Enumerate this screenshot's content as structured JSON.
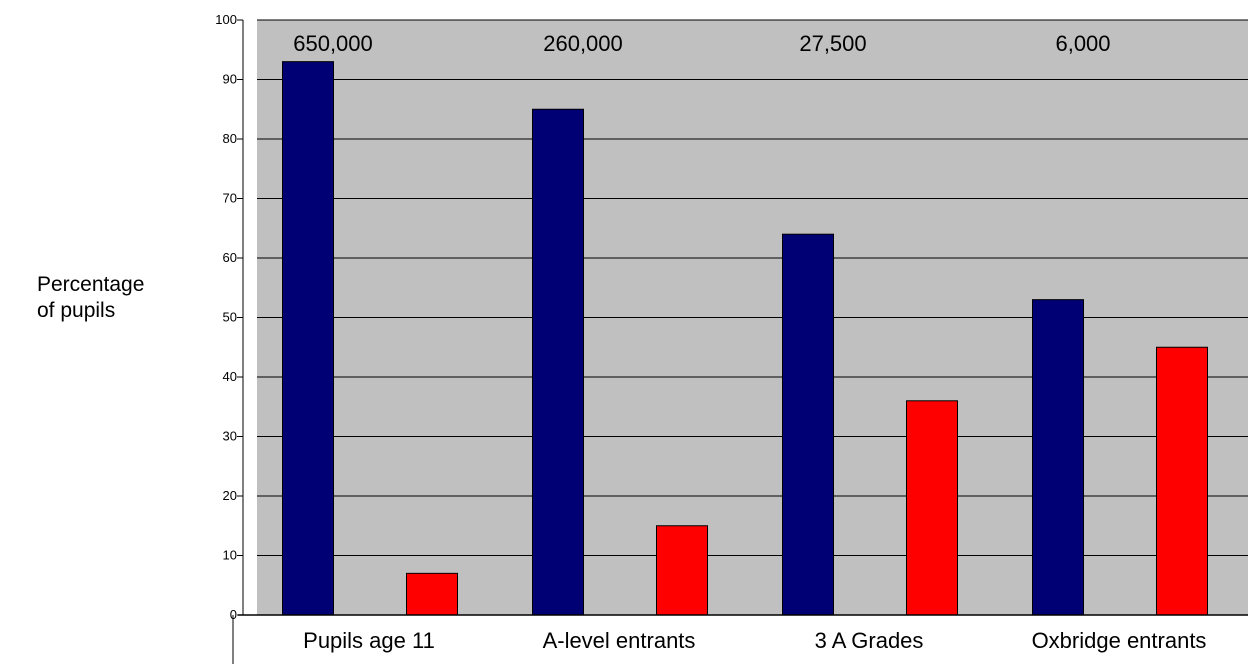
{
  "chart_data": {
    "type": "bar",
    "title": "",
    "xlabel": "",
    "ylabel_lines": [
      "Percentage",
      "of pupils"
    ],
    "categories": [
      "Pupils age 11",
      "A-level entrants",
      "3 A Grades",
      "Oxbridge entrants"
    ],
    "totals": [
      "650,000",
      "260,000",
      "27,500",
      "6,000"
    ],
    "series": [
      {
        "values": [
          93,
          85,
          64,
          53
        ],
        "color": "#000074"
      },
      {
        "values": [
          7,
          15,
          36,
          45
        ],
        "color": "#ff0000"
      }
    ],
    "ylim": [
      0,
      100
    ],
    "yticks": [
      0,
      10,
      20,
      30,
      40,
      50,
      60,
      70,
      80,
      90,
      100
    ],
    "grid": true,
    "plot_background": "#c0c0c0",
    "legend": "none"
  }
}
